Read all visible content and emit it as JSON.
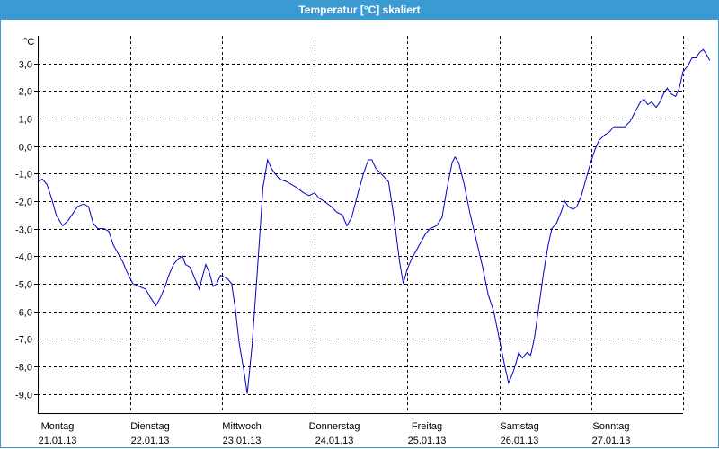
{
  "window": {
    "title": "Temperatur [°C] skaliert"
  },
  "colors": {
    "titlebar": "#3b9ad2",
    "series": "#0000cc",
    "grid": "#000000"
  },
  "chart_data": {
    "type": "line",
    "title": "Temperatur [°C] skaliert",
    "ylabel": "°C",
    "ylim": [
      -9.7,
      4.0
    ],
    "yticks": [
      "3,0",
      "2,0",
      "1,0",
      "0,0",
      "-1,0",
      "-2,0",
      "-3,0",
      "-4,0",
      "-5,0",
      "-6,0",
      "-7,0",
      "-8,0",
      "-9,0"
    ],
    "ytick_values": [
      3,
      2,
      1,
      0,
      -1,
      -2,
      -3,
      -4,
      -5,
      -6,
      -7,
      -8,
      -9
    ],
    "grid": true,
    "days": [
      {
        "name": "Montag",
        "date": "21.01.13"
      },
      {
        "name": "Dienstag",
        "date": "22.01.13"
      },
      {
        "name": "Mittwoch",
        "date": "23.01.13"
      },
      {
        "name": "Donnerstag",
        "date": "24.01.13"
      },
      {
        "name": "Freitag",
        "date": "25.01.13"
      },
      {
        "name": "Samstag",
        "date": "26.01.13"
      },
      {
        "name": "Sonntag",
        "date": "27.01.13"
      }
    ],
    "series": [
      {
        "values": [
          [
            0.0,
            -1.3
          ],
          [
            0.05,
            -1.2
          ],
          [
            0.1,
            -1.4
          ],
          [
            0.15,
            -1.9
          ],
          [
            0.2,
            -2.5
          ],
          [
            0.27,
            -2.9
          ],
          [
            0.33,
            -2.7
          ],
          [
            0.37,
            -2.5
          ],
          [
            0.43,
            -2.2
          ],
          [
            0.5,
            -2.1
          ],
          [
            0.55,
            -2.2
          ],
          [
            0.6,
            -2.8
          ],
          [
            0.65,
            -3.0
          ],
          [
            0.72,
            -3.0
          ],
          [
            0.77,
            -3.1
          ],
          [
            0.82,
            -3.6
          ],
          [
            0.87,
            -3.9
          ],
          [
            0.92,
            -4.2
          ],
          [
            0.97,
            -4.6
          ],
          [
            1.03,
            -5.0
          ],
          [
            1.1,
            -5.1
          ],
          [
            1.17,
            -5.2
          ],
          [
            1.22,
            -5.5
          ],
          [
            1.28,
            -5.8
          ],
          [
            1.33,
            -5.5
          ],
          [
            1.38,
            -5.1
          ],
          [
            1.42,
            -4.7
          ],
          [
            1.47,
            -4.3
          ],
          [
            1.52,
            -4.1
          ],
          [
            1.57,
            -4.0
          ],
          [
            1.6,
            -4.3
          ],
          [
            1.65,
            -4.4
          ],
          [
            1.7,
            -4.8
          ],
          [
            1.75,
            -5.2
          ],
          [
            1.78,
            -4.8
          ],
          [
            1.82,
            -4.3
          ],
          [
            1.86,
            -4.6
          ],
          [
            1.9,
            -5.1
          ],
          [
            1.94,
            -5.0
          ],
          [
            1.98,
            -4.7
          ],
          [
            2.05,
            -4.8
          ],
          [
            2.1,
            -5.0
          ],
          [
            2.14,
            -5.9
          ],
          [
            2.18,
            -7.1
          ],
          [
            2.24,
            -8.3
          ],
          [
            2.27,
            -9.0
          ],
          [
            2.32,
            -7.3
          ],
          [
            2.38,
            -4.5
          ],
          [
            2.44,
            -1.5
          ],
          [
            2.49,
            -0.5
          ],
          [
            2.53,
            -0.8
          ],
          [
            2.57,
            -1.0
          ],
          [
            2.62,
            -1.2
          ],
          [
            2.7,
            -1.3
          ],
          [
            2.8,
            -1.5
          ],
          [
            2.88,
            -1.7
          ],
          [
            2.94,
            -1.8
          ],
          [
            3.0,
            -1.7
          ],
          [
            3.05,
            -1.9
          ],
          [
            3.1,
            -2.0
          ],
          [
            3.18,
            -2.2
          ],
          [
            3.24,
            -2.4
          ],
          [
            3.3,
            -2.5
          ],
          [
            3.35,
            -2.9
          ],
          [
            3.4,
            -2.6
          ],
          [
            3.47,
            -1.7
          ],
          [
            3.53,
            -1.0
          ],
          [
            3.58,
            -0.5
          ],
          [
            3.62,
            -0.5
          ],
          [
            3.66,
            -0.8
          ],
          [
            3.72,
            -1.0
          ],
          [
            3.8,
            -1.3
          ],
          [
            3.86,
            -2.6
          ],
          [
            3.92,
            -4.2
          ],
          [
            3.96,
            -5.0
          ],
          [
            4.0,
            -4.5
          ],
          [
            4.05,
            -4.1
          ],
          [
            4.1,
            -3.8
          ],
          [
            4.15,
            -3.5
          ],
          [
            4.2,
            -3.2
          ],
          [
            4.25,
            -3.0
          ],
          [
            4.32,
            -2.9
          ],
          [
            4.38,
            -2.6
          ],
          [
            4.43,
            -1.6
          ],
          [
            4.49,
            -0.6
          ],
          [
            4.52,
            -0.4
          ],
          [
            4.56,
            -0.6
          ],
          [
            4.62,
            -1.4
          ],
          [
            4.68,
            -2.4
          ],
          [
            4.75,
            -3.4
          ],
          [
            4.82,
            -4.4
          ],
          [
            4.88,
            -5.4
          ],
          [
            4.94,
            -6.0
          ],
          [
            5.0,
            -7.0
          ],
          [
            5.06,
            -8.0
          ],
          [
            5.1,
            -8.6
          ],
          [
            5.14,
            -8.3
          ],
          [
            5.18,
            -7.9
          ],
          [
            5.21,
            -7.5
          ],
          [
            5.25,
            -7.7
          ],
          [
            5.3,
            -7.5
          ],
          [
            5.34,
            -7.6
          ],
          [
            5.38,
            -7.0
          ],
          [
            5.43,
            -5.8
          ],
          [
            5.48,
            -4.6
          ],
          [
            5.53,
            -3.6
          ],
          [
            5.57,
            -3.0
          ],
          [
            5.62,
            -2.8
          ],
          [
            5.67,
            -2.4
          ],
          [
            5.71,
            -2.0
          ],
          [
            5.75,
            -2.2
          ],
          [
            5.8,
            -2.3
          ],
          [
            5.84,
            -2.2
          ],
          [
            5.89,
            -1.8
          ],
          [
            5.94,
            -1.2
          ],
          [
            5.99,
            -0.6
          ],
          [
            6.04,
            -0.1
          ],
          [
            6.08,
            0.2
          ],
          [
            6.14,
            0.4
          ],
          [
            6.19,
            0.5
          ],
          [
            6.24,
            0.7
          ],
          [
            6.3,
            0.7
          ],
          [
            6.36,
            0.7
          ],
          [
            6.42,
            0.9
          ],
          [
            6.48,
            1.3
          ],
          [
            6.53,
            1.6
          ],
          [
            6.57,
            1.7
          ],
          [
            6.61,
            1.5
          ],
          [
            6.65,
            1.6
          ],
          [
            6.7,
            1.4
          ],
          [
            6.74,
            1.6
          ],
          [
            6.78,
            1.9
          ],
          [
            6.82,
            2.1
          ],
          [
            6.86,
            1.9
          ],
          [
            6.91,
            1.8
          ],
          [
            6.95,
            2.1
          ],
          [
            6.99,
            2.7
          ],
          [
            7.04,
            2.9
          ],
          [
            7.09,
            3.2
          ],
          [
            7.13,
            3.2
          ],
          [
            7.17,
            3.4
          ],
          [
            7.21,
            3.5
          ],
          [
            7.25,
            3.3
          ],
          [
            7.28,
            3.1
          ]
        ]
      }
    ]
  }
}
